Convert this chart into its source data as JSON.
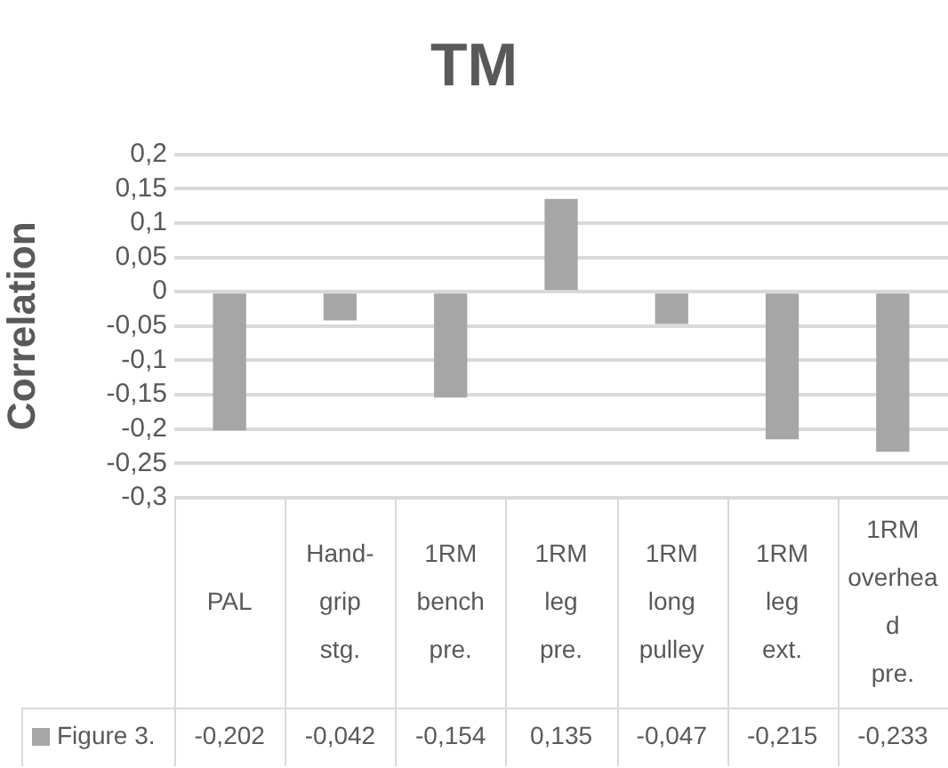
{
  "chart_data": {
    "type": "bar",
    "title": "TM",
    "ylabel": "Correlation",
    "categories": [
      "PAL",
      "Hand-grip stg.",
      "1RM bench pre.",
      "1RM leg pre.",
      "1RM long pulley",
      "1RM leg ext.",
      "1RM overhead pre."
    ],
    "series": [
      {
        "name": "Figure 3.",
        "color": "#a6a6a6",
        "values": [
          -0.202,
          -0.042,
          -0.154,
          0.135,
          -0.047,
          -0.215,
          -0.233
        ],
        "value_labels": [
          "-0,202",
          "-0,042",
          "-0,154",
          "0,135",
          "-0,047",
          "-0,215",
          "-0,233"
        ]
      }
    ],
    "ylim": [
      -0.3,
      0.2
    ],
    "yticks": [
      {
        "value": -0.3,
        "label": "-0,3"
      },
      {
        "value": -0.25,
        "label": "-0,25"
      },
      {
        "value": -0.2,
        "label": "-0,2"
      },
      {
        "value": -0.15,
        "label": "-0,15"
      },
      {
        "value": -0.1,
        "label": "-0,1"
      },
      {
        "value": -0.05,
        "label": "-0,05"
      },
      {
        "value": 0,
        "label": "0"
      },
      {
        "value": 0.05,
        "label": "0,05"
      },
      {
        "value": 0.1,
        "label": "0,1"
      },
      {
        "value": 0.15,
        "label": "0,15"
      },
      {
        "value": 0.2,
        "label": "0,2"
      }
    ],
    "grid": "y"
  }
}
